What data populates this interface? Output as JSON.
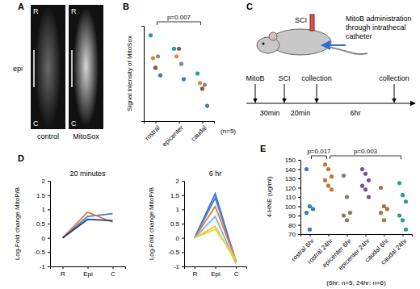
{
  "panel_a": {
    "label": "A",
    "side_label": "epi",
    "images": [
      {
        "caption": "control",
        "top": "R",
        "bottom": "C"
      },
      {
        "caption": "MitoSox",
        "top": "R",
        "bottom": "C"
      }
    ]
  },
  "panel_c": {
    "label": "C",
    "injury": "SCI",
    "description": [
      "MitoB administration",
      "through intrathecal",
      "catheter"
    ],
    "events": [
      "MitoB",
      "SCI",
      "collection",
      "collection"
    ],
    "intervals": [
      "30min",
      "20min",
      "6hr"
    ]
  },
  "chart_data": [
    {
      "label": "B",
      "type": "scatter",
      "y_label": "Signal intensity of MitoSox",
      "categories": [
        "rostral",
        "epicenter",
        "caudal"
      ],
      "series": [
        {
          "color": "#2a9d9d",
          "values": [
            45,
            38,
            25
          ]
        },
        {
          "color": "#e08a3c",
          "values": [
            33,
            34,
            20
          ]
        },
        {
          "color": "#8b5a3c",
          "values": [
            28,
            38,
            17
          ]
        },
        {
          "color": "#8a8a8a",
          "values": [
            34,
            30,
            19
          ]
        },
        {
          "color": "#3a7cc0",
          "values": [
            24,
            22,
            8
          ]
        }
      ],
      "ylim": [
        0,
        50
      ],
      "yticks": [],
      "tick_labels": "x",
      "annotations": [
        {
          "text": "p=0.007",
          "between": [
            "rostral",
            "caudal"
          ]
        }
      ],
      "note": "(n=5)"
    },
    {
      "label": "D",
      "type": "line",
      "title": "20 minutes",
      "y_label": "Log-Fold change MitoP/B",
      "categories": [
        "R",
        "Epi",
        "C"
      ],
      "series": [
        {
          "color": "#4a7fc1",
          "values": [
            0,
            0.75,
            0.85
          ]
        },
        {
          "color": "#e07b39",
          "values": [
            0,
            0.9,
            0.55
          ]
        },
        {
          "color": "#1f3f8a",
          "values": [
            0,
            0.65,
            0.6
          ]
        }
      ],
      "ylim": [
        -1,
        2
      ],
      "yticks": [
        -1,
        -0.5,
        0,
        0.5,
        1,
        1.5,
        2
      ]
    },
    {
      "type": "line",
      "title": "6 hr",
      "y_label": "Log-Fold change MitoP/B",
      "categories": [
        "R",
        "Epi",
        "C"
      ],
      "series": [
        {
          "color": "#2f6fd1",
          "values": [
            0,
            1.55,
            -0.85
          ]
        },
        {
          "color": "#4a7fc1",
          "values": [
            0,
            1.4,
            -0.8
          ]
        },
        {
          "color": "#e07b39",
          "values": [
            0,
            1.1,
            -0.8
          ]
        },
        {
          "color": "#7fb2e5",
          "values": [
            0,
            0.75,
            -0.9
          ]
        },
        {
          "color": "#e8c52a",
          "values": [
            0,
            0.4,
            -0.85
          ]
        },
        {
          "color": "#f0d04a",
          "values": [
            0,
            0.3,
            -0.75
          ]
        }
      ],
      "ylim": [
        -1,
        2
      ],
      "yticks": [
        -1,
        -0.5,
        0,
        0.5,
        1,
        1.5,
        2
      ]
    },
    {
      "label": "E",
      "type": "scatter",
      "y_label": "4-HNE (ug/ml)",
      "categories": [
        "rostral 6hr",
        "rostral 24hr",
        "epicenter 6hr",
        "epicenter 24hr",
        "caudal 6hr",
        "caudal 24hr"
      ],
      "values": [
        [
          140,
          100,
          97,
          93,
          75
        ],
        [
          145,
          140,
          132,
          128,
          122,
          118
        ],
        [
          133,
          110,
          93,
          90,
          85
        ],
        [
          140,
          135,
          128,
          122,
          118,
          110
        ],
        [
          120,
          100,
          97,
          93,
          85
        ],
        [
          125,
          112,
          105,
          90,
          85,
          75
        ]
      ],
      "colors": [
        "#3a7cc0",
        "#c8763a",
        "#8a7a6a",
        "#7a4fa0",
        "#a0784a",
        "#2a9d8f"
      ],
      "ylim": [
        70,
        150
      ],
      "yticks": [
        70,
        80,
        90,
        100,
        110,
        120,
        130,
        140,
        150
      ],
      "annotations": [
        {
          "text": "p=0.017",
          "between": [
            "rostral 6hr",
            "rostral 24hr"
          ]
        },
        {
          "text": "p=0.003",
          "between": [
            "rostral 24hr",
            "caudal 24hr"
          ]
        }
      ],
      "note": "(6hr: n=5, 24hr: n=6)"
    }
  ]
}
